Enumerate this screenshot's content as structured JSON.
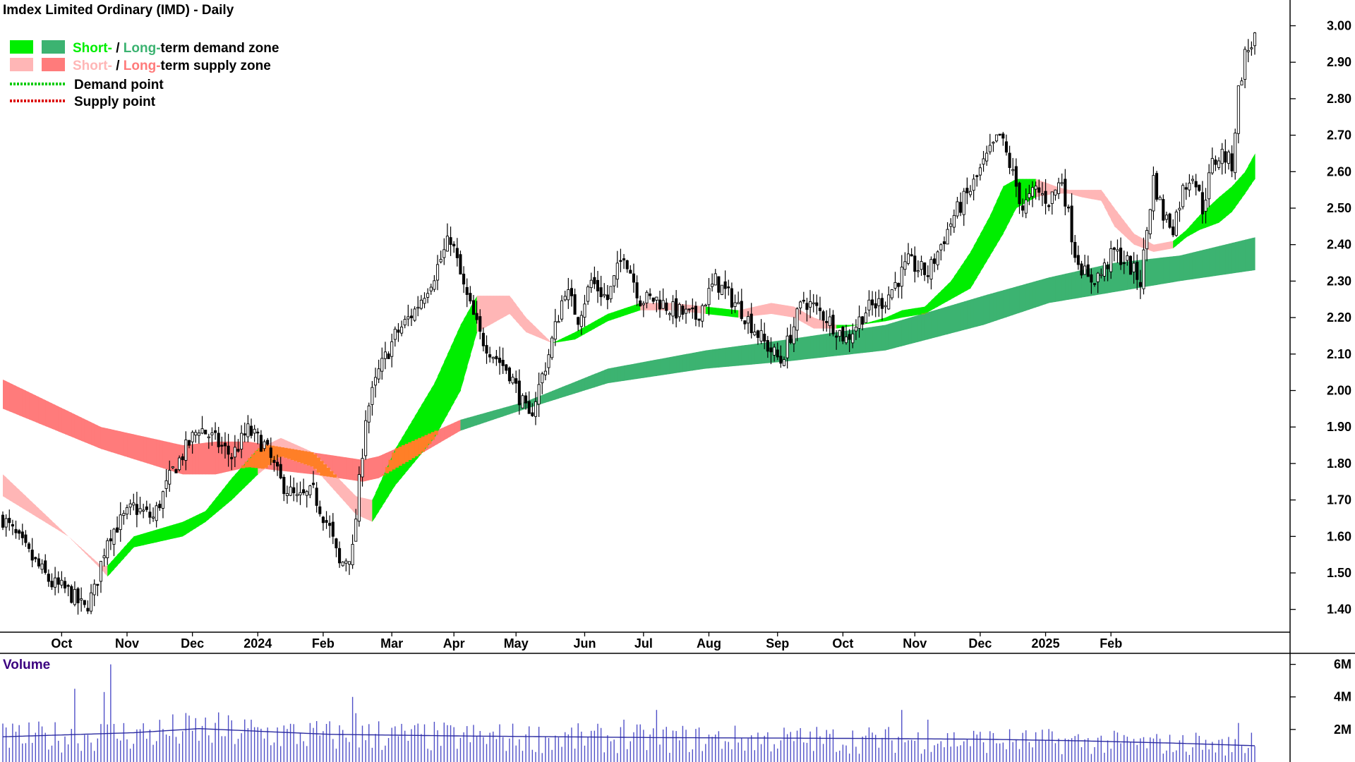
{
  "title": "Imdex Limited Ordinary (IMD) - Daily",
  "legend": {
    "zone_demand": {
      "short_text": "Short-",
      "slash": " / ",
      "long_text": "Long-",
      "rest_text": "term demand zone"
    },
    "zone_supply": {
      "short_text": "Short-",
      "slash": " / ",
      "long_text": "Long-",
      "rest_text": "term supply zone"
    },
    "demand_point": "Demand point",
    "supply_point": "Supply point"
  },
  "colors": {
    "short_demand": "#00ee00",
    "long_demand": "#3cb371",
    "short_supply": "#ffb6b6",
    "long_supply": "#ff7b7b",
    "overlap": "#ff7f27",
    "demand_point": "#00cc00",
    "supply_point": "#dd0000",
    "volume_bar": "#5050c8",
    "volume_avg": "#2a2aa0",
    "volume_label": "#3b0080",
    "candle": "#000000"
  },
  "chart_data": {
    "type": "candlestick",
    "title": "Imdex Limited Ordinary (IMD) - Daily",
    "ylim": [
      1.33,
      3.04
    ],
    "y_ticks": [
      "3.00",
      "2.90",
      "2.80",
      "2.70",
      "2.60",
      "2.50",
      "2.40",
      "2.30",
      "2.20",
      "2.10",
      "2.00",
      "1.90",
      "1.80",
      "1.70",
      "1.60",
      "1.50",
      "1.40"
    ],
    "x_ticks": [
      "Oct",
      "Nov",
      "Dec",
      "2024",
      "Feb",
      "Mar",
      "Apr",
      "May",
      "Jun",
      "Jul",
      "Aug",
      "Sep",
      "Oct",
      "Nov",
      "Dec",
      "2025",
      "Feb"
    ],
    "price_path": {
      "index": [
        0,
        8,
        15,
        20,
        25,
        28,
        32,
        40,
        46,
        52,
        60,
        64,
        70,
        75,
        80,
        85,
        90,
        95,
        100,
        103,
        107,
        111,
        115,
        120,
        126,
        132,
        137,
        141,
        146,
        150,
        155,
        161,
        167,
        172,
        176,
        180,
        185,
        190,
        195,
        200,
        205,
        212,
        218,
        226,
        233,
        238,
        245,
        252,
        258,
        264,
        270,
        277,
        283,
        291,
        296,
        300,
        305,
        308,
        312,
        316,
        320,
        324,
        328,
        332,
        336,
        340,
        344,
        348,
        352,
        355,
        358
      ],
      "close": [
        1.65,
        1.55,
        1.47,
        1.45,
        1.4,
        1.45,
        1.6,
        1.68,
        1.65,
        1.78,
        1.9,
        1.87,
        1.82,
        1.89,
        1.85,
        1.75,
        1.7,
        1.72,
        1.62,
        1.52,
        1.56,
        1.93,
        2.05,
        2.15,
        2.22,
        2.32,
        2.42,
        2.28,
        2.15,
        2.1,
        2.05,
        1.92,
        2.1,
        2.28,
        2.2,
        2.3,
        2.25,
        2.38,
        2.25,
        2.25,
        2.22,
        2.2,
        2.3,
        2.22,
        2.13,
        2.08,
        2.25,
        2.2,
        2.14,
        2.22,
        2.25,
        2.35,
        2.32,
        2.48,
        2.55,
        2.62,
        2.7,
        2.62,
        2.5,
        2.55,
        2.52,
        2.58,
        2.38,
        2.3,
        2.32,
        2.38,
        2.35,
        2.3,
        2.58,
        2.48,
        2.45
      ]
    },
    "price_tail": {
      "index": [
        358,
        361,
        364,
        367,
        370,
        373,
        376,
        378,
        380,
        382,
        383
      ],
      "close": [
        2.45,
        2.55,
        2.6,
        2.5,
        2.62,
        2.65,
        2.62,
        2.82,
        2.92,
        2.95,
        2.97
      ]
    },
    "price_candles": 384,
    "short_zone": {
      "index": [
        0,
        20,
        30,
        32,
        40,
        55,
        62,
        70,
        78,
        85,
        95,
        108,
        113,
        120,
        132,
        140,
        145,
        155,
        160,
        168,
        175,
        185,
        195,
        205,
        215,
        225,
        235,
        242,
        248,
        255,
        262,
        270,
        275,
        282,
        290,
        296,
        302,
        306,
        310,
        316,
        322,
        326,
        330,
        336,
        340,
        346,
        352,
        358,
        362,
        366,
        372,
        376,
        380,
        383
      ],
      "upper": [
        1.77,
        1.6,
        1.52,
        1.52,
        1.6,
        1.64,
        1.67,
        1.76,
        1.84,
        1.87,
        1.83,
        1.71,
        1.7,
        1.84,
        2.02,
        2.18,
        2.26,
        2.26,
        2.2,
        2.13,
        2.16,
        2.21,
        2.24,
        2.24,
        2.23,
        2.22,
        2.24,
        2.23,
        2.2,
        2.18,
        2.18,
        2.2,
        2.22,
        2.23,
        2.3,
        2.38,
        2.48,
        2.56,
        2.58,
        2.58,
        2.56,
        2.55,
        2.55,
        2.55,
        2.5,
        2.43,
        2.4,
        2.41,
        2.44,
        2.48,
        2.53,
        2.56,
        2.6,
        2.65
      ],
      "lower": [
        1.71,
        1.6,
        1.51,
        1.49,
        1.57,
        1.6,
        1.64,
        1.7,
        1.77,
        1.82,
        1.79,
        1.66,
        1.64,
        1.74,
        1.87,
        2.0,
        2.16,
        2.21,
        2.16,
        2.13,
        2.14,
        2.19,
        2.22,
        2.22,
        2.21,
        2.2,
        2.21,
        2.2,
        2.17,
        2.17,
        2.18,
        2.19,
        2.2,
        2.21,
        2.25,
        2.28,
        2.37,
        2.43,
        2.5,
        2.53,
        2.54,
        2.54,
        2.53,
        2.52,
        2.45,
        2.4,
        2.38,
        2.39,
        2.42,
        2.44,
        2.46,
        2.49,
        2.54,
        2.58
      ],
      "state": [
        "supply",
        "supply",
        "supply",
        "demand",
        "demand",
        "demand",
        "demand",
        "demand",
        "supply",
        "supply",
        "supply",
        "supply",
        "demand",
        "demand",
        "demand",
        "demand",
        "supply",
        "supply",
        "supply",
        "demand",
        "demand",
        "demand",
        "supply",
        "supply",
        "demand",
        "supply",
        "supply",
        "supply",
        "supply",
        "demand",
        "demand",
        "demand",
        "demand",
        "demand",
        "demand",
        "demand",
        "demand",
        "demand",
        "demand",
        "supply",
        "supply",
        "supply",
        "supply",
        "supply",
        "supply",
        "supply",
        "supply",
        "demand",
        "demand",
        "demand",
        "demand",
        "demand",
        "demand",
        "demand"
      ]
    },
    "long_zone": {
      "index": [
        0,
        30,
        55,
        65,
        75,
        95,
        110,
        115,
        140,
        160,
        185,
        215,
        240,
        270,
        300,
        320,
        340,
        360,
        383
      ],
      "upper": [
        2.03,
        1.9,
        1.85,
        1.86,
        1.86,
        1.83,
        1.81,
        1.82,
        1.92,
        1.97,
        2.06,
        2.11,
        2.14,
        2.18,
        2.26,
        2.31,
        2.35,
        2.37,
        2.42
      ],
      "lower": [
        1.95,
        1.84,
        1.77,
        1.77,
        1.79,
        1.77,
        1.75,
        1.76,
        1.89,
        1.95,
        2.02,
        2.06,
        2.08,
        2.11,
        2.18,
        2.24,
        2.27,
        2.3,
        2.33
      ],
      "state": [
        "supply",
        "supply",
        "supply",
        "supply",
        "supply",
        "supply",
        "supply",
        "supply",
        "demand",
        "demand",
        "demand",
        "demand",
        "demand",
        "demand",
        "demand",
        "demand",
        "demand",
        "demand",
        "demand"
      ]
    },
    "volume": {
      "label": "Volume",
      "ylim": [
        0,
        6.2
      ],
      "y_ticks": [
        "6M",
        "4M",
        "2M"
      ],
      "average_path": {
        "index": [
          0,
          40,
          60,
          100,
          140,
          200,
          260,
          300,
          330,
          360,
          383
        ],
        "value": [
          1.55,
          1.8,
          2.05,
          1.7,
          1.6,
          1.5,
          1.45,
          1.4,
          1.3,
          1.15,
          1.0
        ]
      },
      "spikes": {
        "index": [
          22,
          31,
          33,
          107,
          108,
          115,
          190,
          200,
          275,
          283,
          365,
          378,
          382
        ],
        "value": [
          4.5,
          4.3,
          6.0,
          4.0,
          3.0,
          2.5,
          2.6,
          3.2,
          3.2,
          2.6,
          1.8,
          2.4,
          1.8
        ]
      }
    }
  }
}
